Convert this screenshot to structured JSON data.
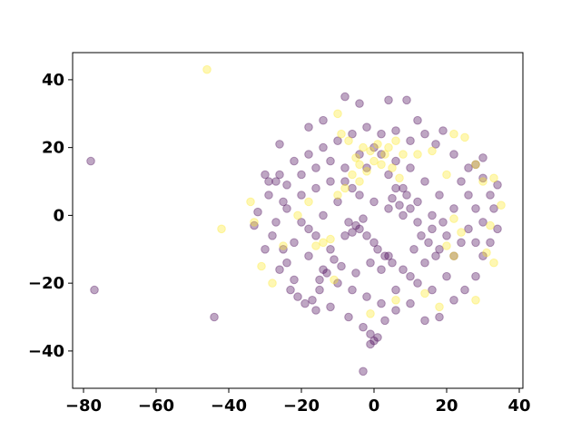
{
  "chart_data": {
    "type": "scatter",
    "title": "",
    "xlabel": "",
    "ylabel": "",
    "xlim": [
      -83,
      41
    ],
    "ylim": [
      -51,
      48
    ],
    "xticks": [
      -80,
      -60,
      -40,
      -20,
      0,
      20,
      40
    ],
    "yticks": [
      -40,
      -20,
      0,
      20,
      40
    ],
    "xtick_labels": [
      "−80",
      "−60",
      "−40",
      "−20",
      "0",
      "20",
      "40"
    ],
    "ytick_labels": [
      "−40",
      "−20",
      "0",
      "20",
      "40"
    ],
    "grid": false,
    "legend": "none",
    "colors": {
      "class_0": "#440154",
      "class_1": "#fde725"
    },
    "alpha": 0.35,
    "series": [
      {
        "class": 0,
        "points": [
          [
            -78,
            16
          ],
          [
            -77,
            -22
          ],
          [
            -44,
            -30
          ],
          [
            -3,
            -46
          ],
          [
            -8,
            35
          ],
          [
            -4,
            33
          ],
          [
            4,
            34
          ],
          [
            9,
            34
          ],
          [
            -14,
            28
          ],
          [
            -18,
            26
          ],
          [
            12,
            28
          ],
          [
            19,
            25
          ],
          [
            -26,
            21
          ],
          [
            28,
            15
          ],
          [
            30,
            17
          ],
          [
            -30,
            12
          ],
          [
            -29,
            10
          ],
          [
            -27,
            10
          ],
          [
            -26,
            12
          ],
          [
            -24,
            9
          ],
          [
            -29,
            6
          ],
          [
            -25,
            4
          ],
          [
            -32,
            1
          ],
          [
            -33,
            -3
          ],
          [
            -28,
            -6
          ],
          [
            -30,
            -10
          ],
          [
            -24,
            -14
          ],
          [
            -22,
            -19
          ],
          [
            -21,
            -24
          ],
          [
            -17,
            -25
          ],
          [
            -15,
            -22
          ],
          [
            -16,
            -28
          ],
          [
            -12,
            -27
          ],
          [
            -7,
            -30
          ],
          [
            -3,
            -33
          ],
          [
            -1,
            -35
          ],
          [
            0,
            -37
          ],
          [
            1,
            -36
          ],
          [
            -1,
            -38
          ],
          [
            3,
            -31
          ],
          [
            6,
            -28
          ],
          [
            10,
            -26
          ],
          [
            14,
            -31
          ],
          [
            18,
            -30
          ],
          [
            22,
            -25
          ],
          [
            25,
            -22
          ],
          [
            28,
            -18
          ],
          [
            30,
            -12
          ],
          [
            32,
            -8
          ],
          [
            34,
            -4
          ],
          [
            33,
            2
          ],
          [
            32,
            6
          ],
          [
            34,
            9
          ],
          [
            30,
            11
          ],
          [
            26,
            14
          ],
          [
            22,
            18
          ],
          [
            17,
            21
          ],
          [
            14,
            24
          ],
          [
            10,
            22
          ],
          [
            6,
            25
          ],
          [
            2,
            24
          ],
          [
            -2,
            26
          ],
          [
            -6,
            24
          ],
          [
            -10,
            22
          ],
          [
            -14,
            20
          ],
          [
            -18,
            18
          ],
          [
            -22,
            16
          ],
          [
            -20,
            12
          ],
          [
            -16,
            14
          ],
          [
            -12,
            16
          ],
          [
            -8,
            10
          ],
          [
            -4,
            6
          ],
          [
            0,
            4
          ],
          [
            4,
            2
          ],
          [
            8,
            0
          ],
          [
            12,
            -2
          ],
          [
            16,
            -4
          ],
          [
            20,
            -6
          ],
          [
            24,
            -8
          ],
          [
            26,
            -4
          ],
          [
            22,
            2
          ],
          [
            18,
            6
          ],
          [
            14,
            10
          ],
          [
            10,
            14
          ],
          [
            6,
            16
          ],
          [
            2,
            18
          ],
          [
            -2,
            14
          ],
          [
            -6,
            8
          ],
          [
            -10,
            4
          ],
          [
            -14,
            0
          ],
          [
            -18,
            -4
          ],
          [
            -22,
            -8
          ],
          [
            -18,
            -12
          ],
          [
            -14,
            -16
          ],
          [
            -10,
            -20
          ],
          [
            -6,
            -22
          ],
          [
            -2,
            -24
          ],
          [
            2,
            -26
          ],
          [
            6,
            -22
          ],
          [
            10,
            -18
          ],
          [
            14,
            -14
          ],
          [
            18,
            -10
          ],
          [
            22,
            -12
          ],
          [
            20,
            -18
          ],
          [
            16,
            -22
          ],
          [
            12,
            -20
          ],
          [
            8,
            -16
          ],
          [
            4,
            -12
          ],
          [
            0,
            -8
          ],
          [
            -4,
            -4
          ],
          [
            -8,
            -6
          ],
          [
            -12,
            -10
          ],
          [
            -16,
            -6
          ],
          [
            -20,
            -2
          ],
          [
            -24,
            2
          ],
          [
            -20,
            6
          ],
          [
            -16,
            8
          ],
          [
            -12,
            10
          ],
          [
            -8,
            14
          ],
          [
            -4,
            18
          ],
          [
            0,
            20
          ],
          [
            4,
            12
          ],
          [
            8,
            8
          ],
          [
            12,
            4
          ],
          [
            16,
            0
          ],
          [
            -5,
            -3
          ],
          [
            -3,
            -1
          ],
          [
            -6,
            -5
          ],
          [
            -2,
            -6
          ],
          [
            -7,
            -2
          ],
          [
            5,
            5
          ],
          [
            7,
            3
          ],
          [
            9,
            6
          ],
          [
            6,
            8
          ],
          [
            10,
            2
          ],
          [
            3,
            -12
          ],
          [
            1,
            -10
          ],
          [
            5,
            -14
          ],
          [
            -1,
            -14
          ],
          [
            2,
            -16
          ],
          [
            13,
            -6
          ],
          [
            15,
            -8
          ],
          [
            11,
            -10
          ],
          [
            17,
            -12
          ],
          [
            19,
            -2
          ],
          [
            -11,
            -13
          ],
          [
            -9,
            -15
          ],
          [
            -13,
            -17
          ],
          [
            -15,
            -19
          ],
          [
            -5,
            -17
          ],
          [
            24,
            10
          ],
          [
            26,
            6
          ],
          [
            28,
            2
          ],
          [
            30,
            -2
          ],
          [
            28,
            -8
          ],
          [
            -26,
            -16
          ],
          [
            -23,
            -22
          ],
          [
            -19,
            -26
          ],
          [
            -25,
            -10
          ],
          [
            -27,
            -2
          ]
        ]
      },
      {
        "class": 1,
        "points": [
          [
            -46,
            43
          ],
          [
            -42,
            -4
          ],
          [
            -3,
            20
          ],
          [
            -1,
            19
          ],
          [
            1,
            21
          ],
          [
            3,
            18
          ],
          [
            -5,
            17
          ],
          [
            0,
            16
          ],
          [
            2,
            15
          ],
          [
            -2,
            13
          ],
          [
            -4,
            15
          ],
          [
            4,
            20
          ],
          [
            -9,
            24
          ],
          [
            -7,
            22
          ],
          [
            6,
            22
          ],
          [
            -6,
            12
          ],
          [
            -4,
            10
          ],
          [
            -8,
            8
          ],
          [
            -10,
            6
          ],
          [
            5,
            14
          ],
          [
            8,
            18
          ],
          [
            -34,
            4
          ],
          [
            -33,
            -2
          ],
          [
            -31,
            -15
          ],
          [
            -28,
            -20
          ],
          [
            -25,
            -9
          ],
          [
            -14,
            -8
          ],
          [
            -12,
            -7
          ],
          [
            -16,
            -9
          ],
          [
            22,
            24
          ],
          [
            25,
            23
          ],
          [
            28,
            15
          ],
          [
            30,
            10
          ],
          [
            33,
            11
          ],
          [
            35,
            3
          ],
          [
            32,
            -3
          ],
          [
            31,
            -11
          ],
          [
            33,
            -14
          ],
          [
            22,
            -12
          ],
          [
            20,
            -9
          ],
          [
            24,
            -5
          ],
          [
            22,
            -1
          ],
          [
            -1,
            -29
          ],
          [
            6,
            -25
          ],
          [
            14,
            -23
          ],
          [
            18,
            -27
          ],
          [
            28,
            -25
          ],
          [
            -10,
            30
          ],
          [
            -11,
            -19
          ],
          [
            7,
            11
          ],
          [
            12,
            18
          ],
          [
            16,
            19
          ],
          [
            20,
            12
          ],
          [
            -18,
            4
          ],
          [
            -21,
            0
          ]
        ]
      }
    ]
  }
}
